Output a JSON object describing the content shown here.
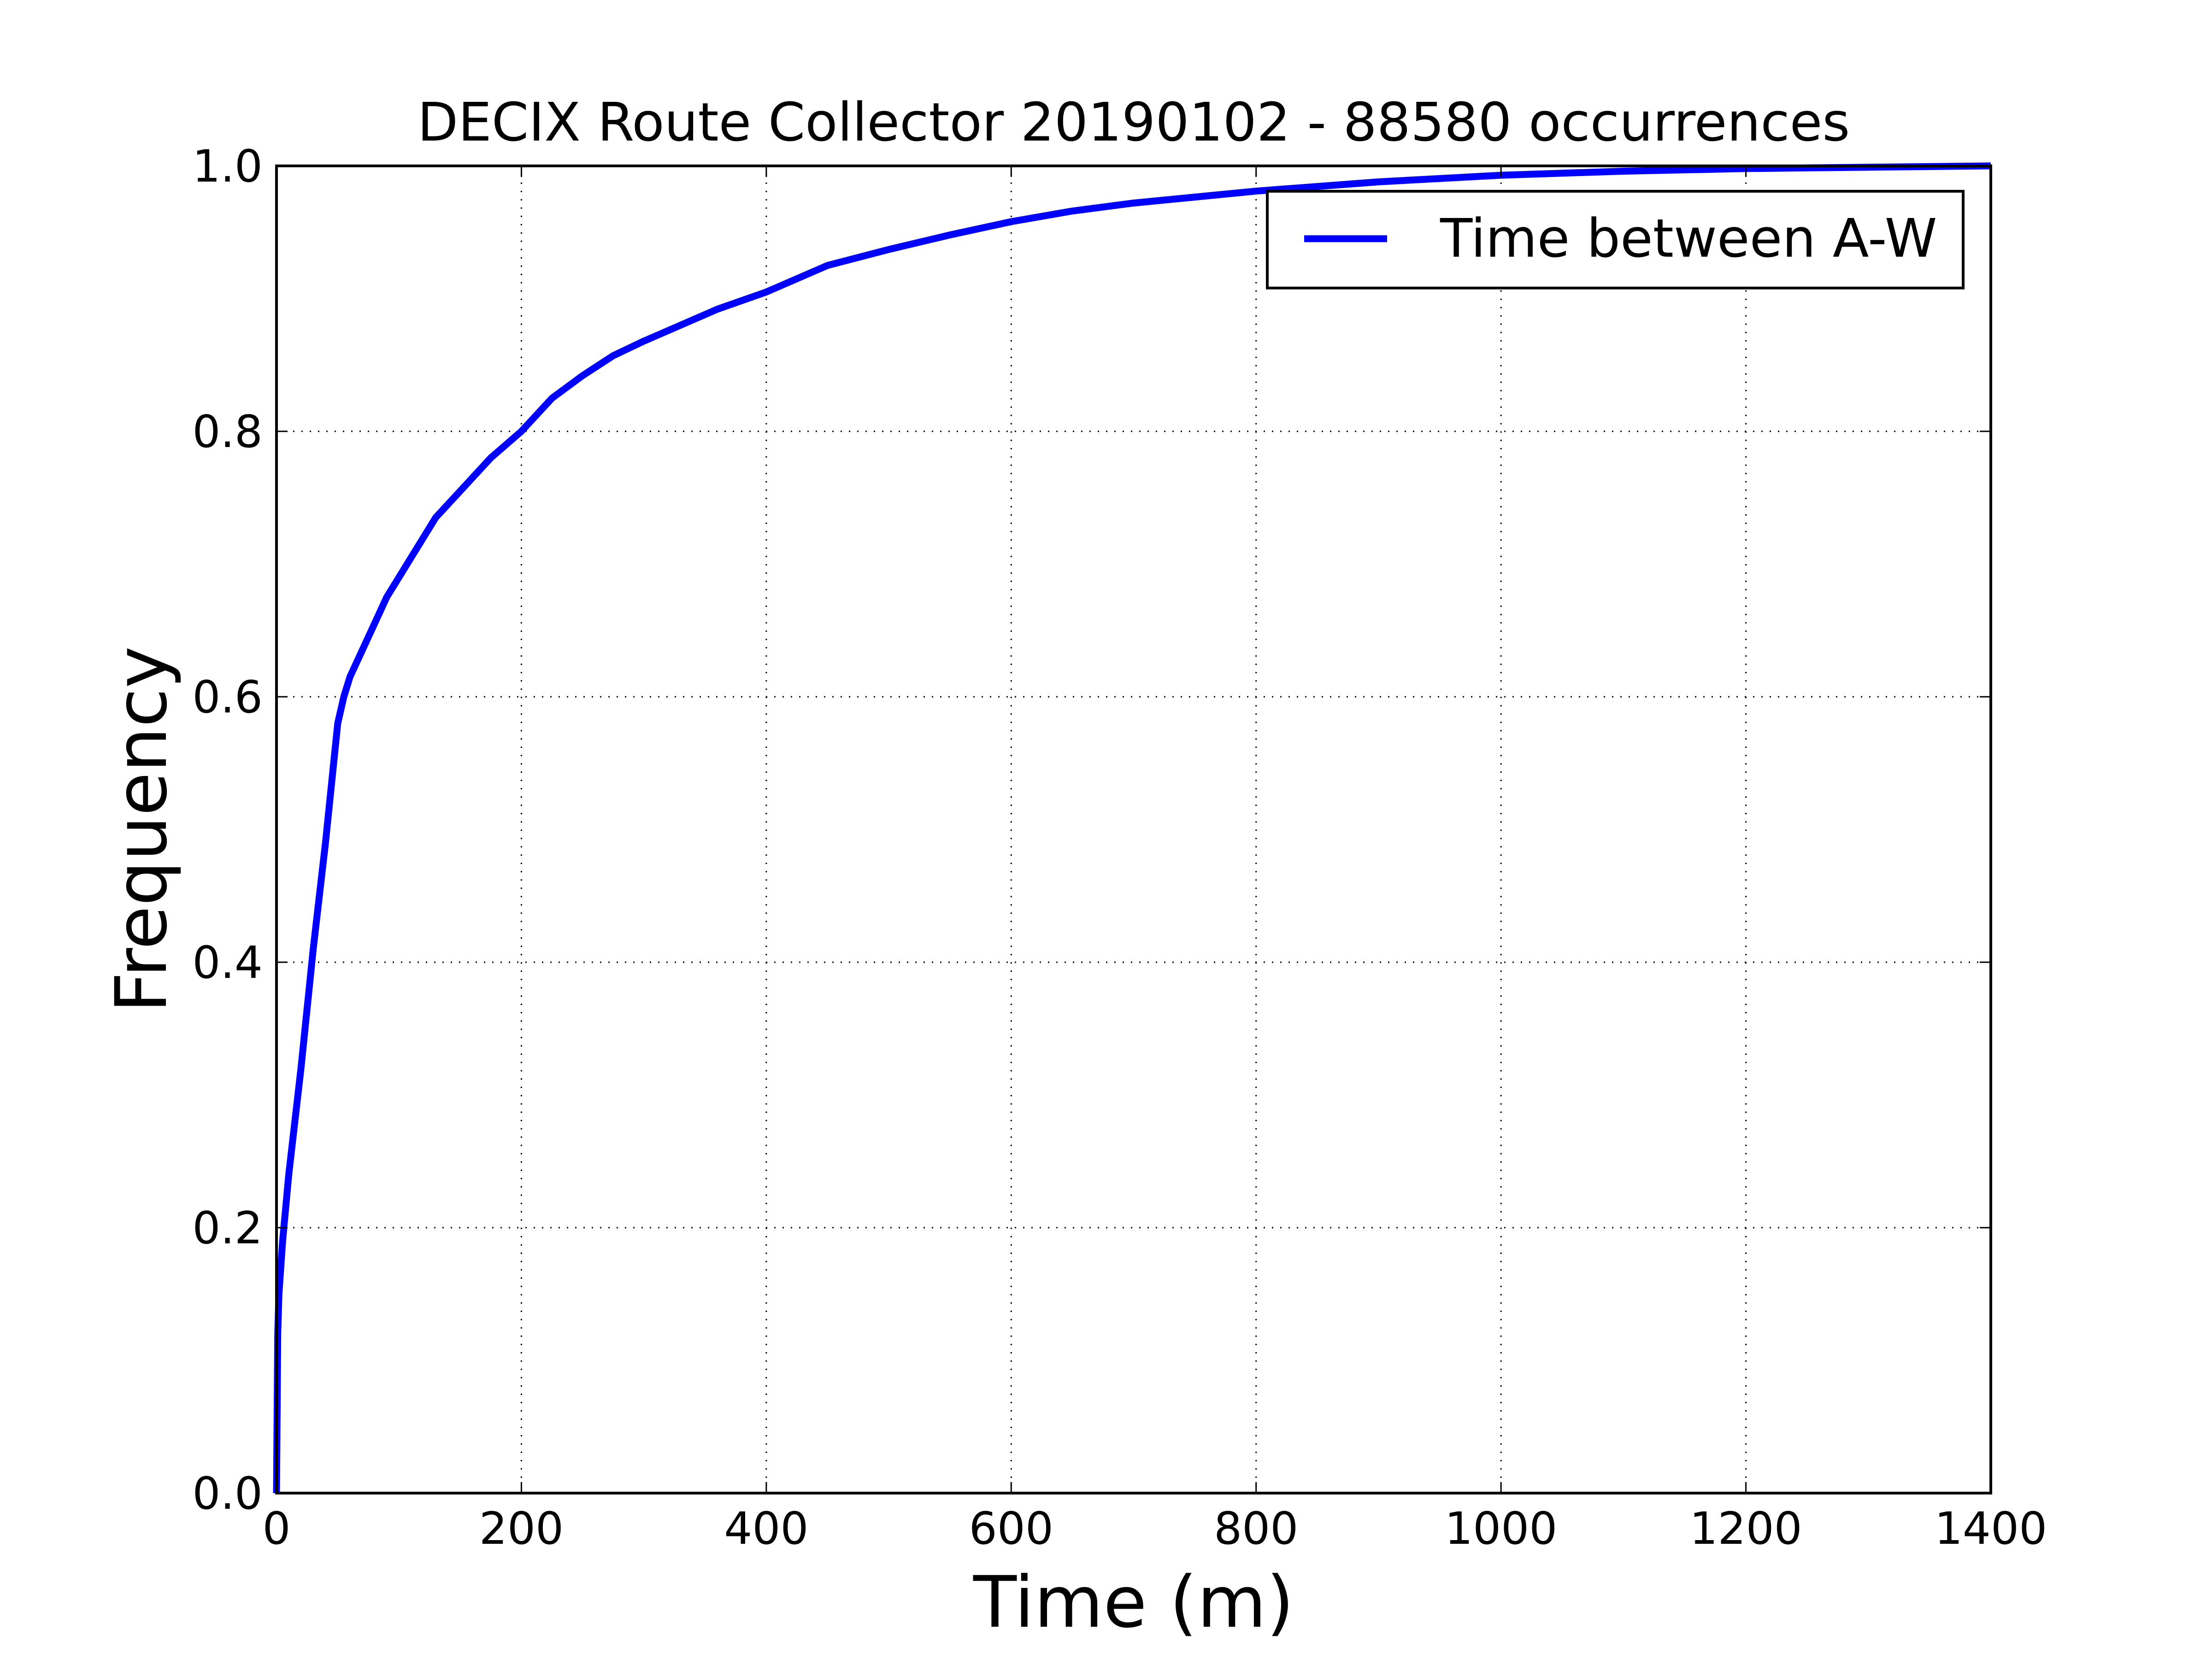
{
  "chart_data": {
    "type": "line",
    "title": "DECIX Route Collector 20190102 - 88580 occurrences",
    "xlabel": "Time (m)",
    "ylabel": "Frequency",
    "xlim": [
      0,
      1400
    ],
    "ylim": [
      0.0,
      1.0
    ],
    "xticks": [
      0,
      200,
      400,
      600,
      800,
      1000,
      1200,
      1400
    ],
    "xtick_labels": [
      "0",
      "200",
      "400",
      "600",
      "800",
      "1000",
      "1200",
      "1400"
    ],
    "yticks": [
      0.0,
      0.2,
      0.4,
      0.6,
      0.8,
      1.0
    ],
    "ytick_labels": [
      "0.0",
      "0.2",
      "0.4",
      "0.6",
      "0.8",
      "1.0"
    ],
    "grid": true,
    "legend_position": "top-right",
    "series": [
      {
        "name": "Time between A-W",
        "color": "#0000ff",
        "x": [
          0,
          1,
          2,
          5,
          10,
          20,
          30,
          40,
          50,
          55,
          60,
          70,
          80,
          90,
          100,
          110,
          120,
          130,
          140,
          150,
          175,
          200,
          225,
          250,
          275,
          300,
          330,
          360,
          400,
          450,
          500,
          550,
          600,
          650,
          700,
          800,
          900,
          1000,
          1100,
          1200,
          1300,
          1400
        ],
        "y": [
          0.0,
          0.12,
          0.15,
          0.19,
          0.24,
          0.32,
          0.41,
          0.49,
          0.58,
          0.6,
          0.615,
          0.635,
          0.655,
          0.675,
          0.69,
          0.705,
          0.72,
          0.735,
          0.745,
          0.755,
          0.78,
          0.8,
          0.825,
          0.842,
          0.857,
          0.868,
          0.88,
          0.892,
          0.905,
          0.925,
          0.937,
          0.948,
          0.958,
          0.966,
          0.972,
          0.981,
          0.988,
          0.993,
          0.996,
          0.998,
          0.999,
          1.0
        ]
      }
    ]
  }
}
